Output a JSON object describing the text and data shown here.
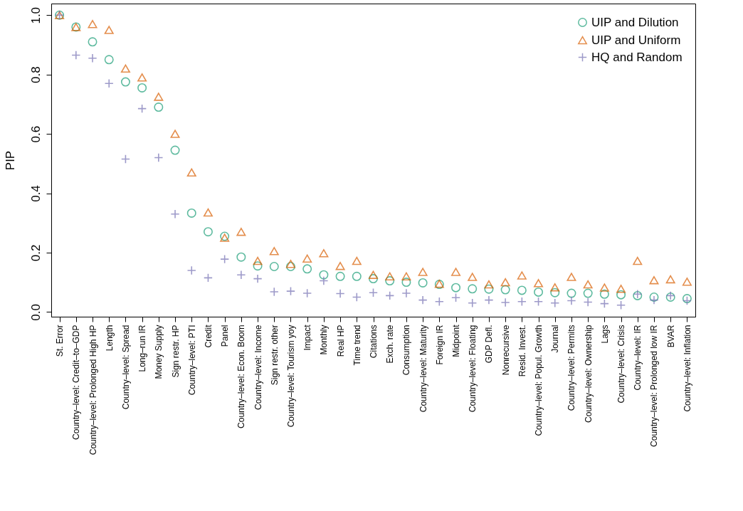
{
  "chart_data": {
    "type": "scatter",
    "ylabel": "PIP",
    "categories": [
      "St. Error",
      "Country–level: Credit–to–GDP",
      "Country–level: Prolonged High HP",
      "Length",
      "Country–level: Spread",
      "Long–run IR",
      "Money Supply",
      "Sign restr. HP",
      "Country–level: PTI",
      "Credit",
      "Panel",
      "Country–level: Econ. Boom",
      "Country–level: Income",
      "Sign restr. other",
      "Country–level: Tourism yoy",
      "Impact",
      "Monthly",
      "Real HP",
      "Time trend",
      "Citations",
      "Exch. rate",
      "Consumption",
      "Country–level: Maturity",
      "Foreign IR",
      "Midpoint",
      "Country–level: Floating",
      "GDP Defl.",
      "Nonrecursive",
      "Resid. Invest.",
      "Country–level: Popul. Growth",
      "Journal",
      "Country–level: Permits",
      "Country–level: Ownership",
      "Lags",
      "Country–level: Crisis",
      "Country–level: IR",
      "Country–level: Prolonged low IR",
      "BVAR",
      "Country–level: Inflation"
    ],
    "series": [
      {
        "name": "UIP and Dilution",
        "color": "#1b9e77",
        "marker": "circle",
        "values": [
          1.0,
          0.96,
          0.91,
          0.85,
          0.775,
          0.755,
          0.69,
          0.545,
          0.333,
          0.27,
          0.255,
          0.185,
          0.155,
          0.153,
          0.153,
          0.145,
          0.125,
          0.12,
          0.12,
          0.112,
          0.105,
          0.1,
          0.098,
          0.093,
          0.082,
          0.078,
          0.077,
          0.075,
          0.073,
          0.067,
          0.065,
          0.063,
          0.063,
          0.06,
          0.058,
          0.055,
          0.05,
          0.05,
          0.045
        ]
      },
      {
        "name": "UIP and Uniform",
        "color": "#d95f02",
        "marker": "triangle",
        "values": [
          1.0,
          0.96,
          0.97,
          0.95,
          0.82,
          0.79,
          0.725,
          0.6,
          0.47,
          0.335,
          0.25,
          0.27,
          0.172,
          0.205,
          0.162,
          0.18,
          0.198,
          0.155,
          0.172,
          0.125,
          0.12,
          0.12,
          0.135,
          0.095,
          0.135,
          0.118,
          0.093,
          0.1,
          0.123,
          0.097,
          0.083,
          0.118,
          0.093,
          0.082,
          0.078,
          0.172,
          0.107,
          0.11,
          0.102
        ]
      },
      {
        "name": "HQ and Random",
        "color": "#7570b3",
        "marker": "cross",
        "values": [
          1.0,
          0.865,
          0.855,
          0.77,
          0.515,
          0.685,
          0.52,
          0.33,
          0.14,
          0.115,
          0.178,
          0.125,
          0.112,
          0.068,
          0.07,
          0.063,
          0.105,
          0.062,
          0.05,
          0.065,
          0.055,
          0.063,
          0.04,
          0.035,
          0.048,
          0.03,
          0.04,
          0.032,
          0.035,
          0.035,
          0.03,
          0.038,
          0.033,
          0.028,
          0.023,
          0.06,
          0.04,
          0.055,
          0.038
        ]
      }
    ],
    "ylim": [
      -0.016,
      1.039
    ],
    "yticks": [
      {
        "value": 0,
        "label": "0.0"
      },
      {
        "value": 0.2,
        "label": "0.2"
      },
      {
        "value": 0.4,
        "label": "0.4"
      },
      {
        "value": 0.6,
        "label": "0.6"
      },
      {
        "value": 0.8,
        "label": "0.8"
      },
      {
        "value": 1,
        "label": "1.0"
      }
    ],
    "legend": "top right",
    "grid": false
  }
}
